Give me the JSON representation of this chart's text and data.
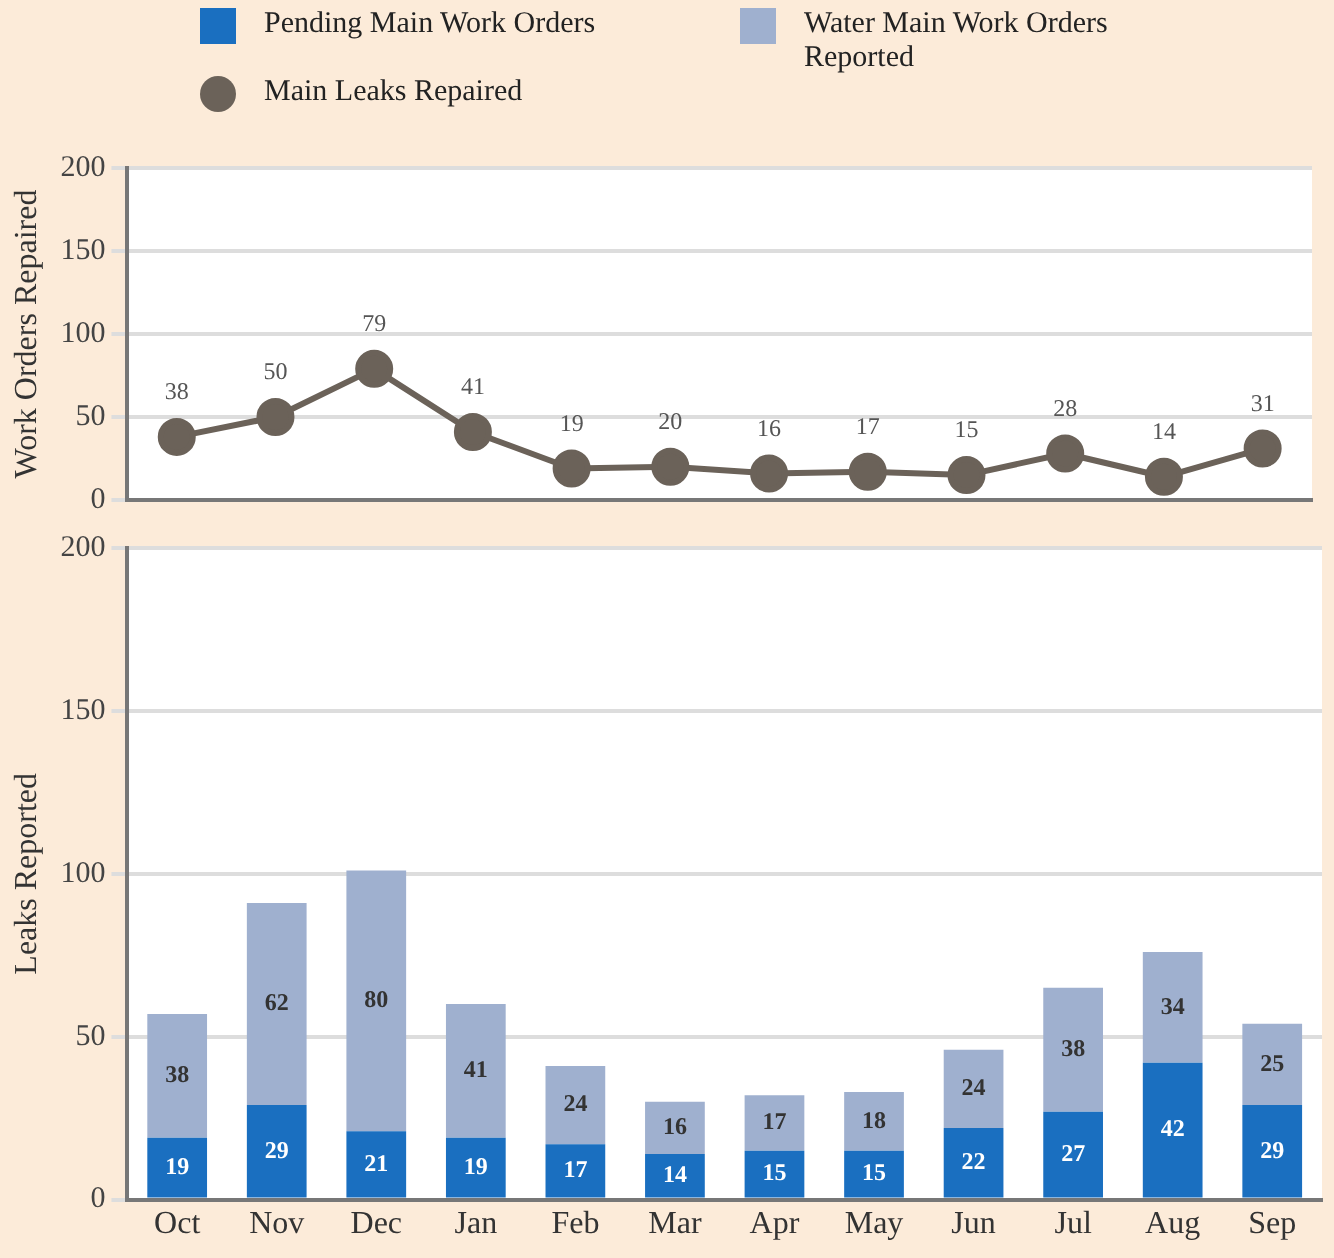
{
  "chart_data": [
    {
      "type": "line",
      "ylabel": "Work Orders Repaired",
      "categories": [
        null,
        null,
        null,
        null,
        null,
        null,
        null,
        null,
        null,
        null,
        null,
        null
      ],
      "series": [
        {
          "name": "Main Leaks Repaired",
          "color": "#6b6259",
          "values": [
            38,
            50,
            79,
            41,
            19,
            20,
            16,
            17,
            15,
            28,
            14,
            31
          ]
        }
      ],
      "ylim": [
        0,
        200
      ],
      "yticks": [
        0,
        50,
        100,
        150,
        200
      ],
      "grid": "y",
      "marker": "circle",
      "line_style": "solid",
      "data_labels": true,
      "legend": "top",
      "tick_labels": "y"
    },
    {
      "type": "bar",
      "stacked": true,
      "ylabel": "Leaks Reported",
      "categories": [
        "Oct",
        "Nov",
        "Dec",
        "Jan",
        "Feb",
        "Mar",
        "Apr",
        "May",
        "Jun",
        "Jul",
        "Aug",
        "Sep"
      ],
      "series": [
        {
          "name": "Pending Main Work Orders",
          "color": "#1a6fc0",
          "values": [
            19,
            29,
            21,
            19,
            17,
            14,
            15,
            15,
            22,
            27,
            42,
            29
          ]
        },
        {
          "name": "Water Main Work Orders Reported",
          "color": "#9fb0cf",
          "values": [
            38,
            62,
            80,
            41,
            24,
            16,
            17,
            18,
            24,
            38,
            34,
            25
          ]
        }
      ],
      "ylim": [
        0,
        200
      ],
      "yticks": [
        0,
        50,
        100,
        150,
        200
      ],
      "grid": "y",
      "data_labels": true,
      "legend": "top"
    }
  ]
}
